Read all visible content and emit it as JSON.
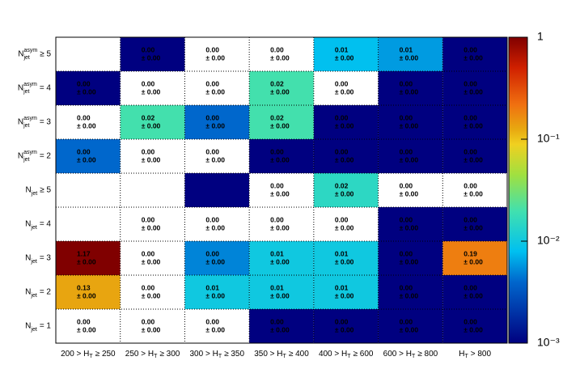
{
  "chart_data": {
    "type": "heatmap",
    "x_categories": [
      {
        "pre": "200 > H",
        "sub": "T",
        "post": "≥ 250"
      },
      {
        "pre": "250 > H",
        "sub": "T",
        "post": "≥ 300"
      },
      {
        "pre": "300 > H",
        "sub": "T",
        "post": "≥ 350"
      },
      {
        "pre": "350 > H",
        "sub": "T",
        "post": "≥ 400"
      },
      {
        "pre": "400 > H",
        "sub": "T",
        "post": "≥ 600"
      },
      {
        "pre": "600 > H",
        "sub": "T",
        "post": "≥ 800"
      },
      {
        "pre": "H",
        "sub": "T",
        "post": "> 800"
      }
    ],
    "y_categories": [
      {
        "main": "N",
        "sub": "jet",
        "sup": "asym",
        "post": "≥ 5"
      },
      {
        "main": "N",
        "sub": "jet",
        "sup": "asym",
        "post": "= 4"
      },
      {
        "main": "N",
        "sub": "jet",
        "sup": "asym",
        "post": "= 3"
      },
      {
        "main": "N",
        "sub": "jet",
        "sup": "asym",
        "post": "= 2"
      },
      {
        "main": "N",
        "sub": "jet",
        "post": "≥ 5"
      },
      {
        "main": "N",
        "sub": "jet",
        "post": "= 4"
      },
      {
        "main": "N",
        "sub": "jet",
        "post": "= 3"
      },
      {
        "main": "N",
        "sub": "jet",
        "post": "= 2"
      },
      {
        "main": "N",
        "sub": "jet",
        "post": "= 1"
      }
    ],
    "values": [
      [
        null,
        0.001,
        0,
        0,
        0.008,
        0.006,
        0.001
      ],
      [
        0.001,
        0,
        0,
        0.02,
        0,
        0.001,
        0.001
      ],
      [
        0,
        0.02,
        0.004,
        0.02,
        0.001,
        0.001,
        0.001
      ],
      [
        0.004,
        0,
        0,
        0.001,
        0.001,
        0.001,
        0.001
      ],
      [
        null,
        null,
        0.001,
        0,
        0.015,
        0,
        0
      ],
      [
        null,
        0,
        0,
        0,
        0,
        0.001,
        0.001
      ],
      [
        1.17,
        0,
        0.005,
        0.01,
        0.01,
        0.001,
        0.19
      ],
      [
        0.13,
        0,
        0.01,
        0.01,
        0.01,
        0.001,
        0.001
      ],
      [
        0,
        0,
        0,
        0.001,
        0.001,
        0.001,
        0.001
      ]
    ],
    "value_labels": [
      [
        null,
        "0.00",
        "0.00",
        "0.00",
        "0.01",
        "0.01",
        "0.00"
      ],
      [
        "0.00",
        "0.00",
        "0.00",
        "0.02",
        "0.00",
        "0.00",
        "0.00"
      ],
      [
        "0.00",
        "0.02",
        "0.00",
        "0.02",
        "0.00",
        "0.00",
        "0.00"
      ],
      [
        "0.00",
        "0.00",
        "0.00",
        "0.00",
        "0.00",
        "0.00",
        "0.00"
      ],
      [
        null,
        null,
        null,
        "0.00",
        "0.02",
        "0.00",
        "0.00"
      ],
      [
        null,
        "0.00",
        "0.00",
        "0.00",
        "0.00",
        "0.00",
        "0.00"
      ],
      [
        "1.17",
        "0.00",
        "0.00",
        "0.01",
        "0.01",
        "0.00",
        "0.19"
      ],
      [
        "0.13",
        "0.00",
        "0.01",
        "0.01",
        "0.01",
        "0.00",
        "0.00"
      ],
      [
        "0.00",
        "0.00",
        "0.00",
        "0.00",
        "0.00",
        "0.00",
        "0.00"
      ]
    ],
    "errors": [
      [
        null,
        0,
        0,
        0,
        0,
        0,
        0
      ],
      [
        0,
        0,
        0,
        0,
        0,
        0,
        0
      ],
      [
        0,
        0,
        0,
        0,
        0,
        0,
        0
      ],
      [
        0,
        0,
        0,
        0,
        0,
        0,
        0
      ],
      [
        null,
        null,
        null,
        0,
        0,
        0,
        0
      ],
      [
        null,
        0,
        0,
        0,
        0,
        0,
        0
      ],
      [
        0,
        0,
        0,
        0,
        0,
        0,
        0
      ],
      [
        0,
        0,
        0,
        0,
        0,
        0,
        0
      ],
      [
        0,
        0,
        0,
        0,
        0,
        0,
        0
      ]
    ],
    "error_labels": [
      [
        null,
        "± 0.00",
        "± 0.00",
        "± 0.00",
        "± 0.00",
        "± 0.00",
        "± 0.00"
      ],
      [
        "± 0.00",
        "± 0.00",
        "± 0.00",
        "± 0.00",
        "± 0.00",
        "± 0.00",
        "± 0.00"
      ],
      [
        "± 0.00",
        "± 0.00",
        "± 0.00",
        "± 0.00",
        "± 0.00",
        "± 0.00",
        "± 0.00"
      ],
      [
        "± 0.00",
        "± 0.00",
        "± 0.00",
        "± 0.00",
        "± 0.00",
        "± 0.00",
        "± 0.00"
      ],
      [
        null,
        null,
        null,
        "± 0.00",
        "± 0.00",
        "± 0.00",
        "± 0.00"
      ],
      [
        null,
        "± 0.00",
        "± 0.00",
        "± 0.00",
        "± 0.00",
        "± 0.00",
        "± 0.00"
      ],
      [
        "± 0.00",
        "± 0.00",
        "± 0.00",
        "± 0.00",
        "± 0.00",
        "± 0.00",
        "± 0.00"
      ],
      [
        "± 0.00",
        "± 0.00",
        "± 0.00",
        "± 0.00",
        "± 0.00",
        "± 0.00",
        "± 0.00"
      ],
      [
        "± 0.00",
        "± 0.00",
        "± 0.00",
        "± 0.00",
        "± 0.00",
        "± 0.00",
        "± 0.00"
      ]
    ],
    "zlim": [
      0.001,
      1
    ],
    "zscale": "log",
    "zticks": [
      {
        "value": 0.001,
        "label": "10⁻³"
      },
      {
        "value": 0.01,
        "label": "10⁻²"
      },
      {
        "value": 0.1,
        "label": "10⁻¹"
      },
      1
    ]
  }
}
